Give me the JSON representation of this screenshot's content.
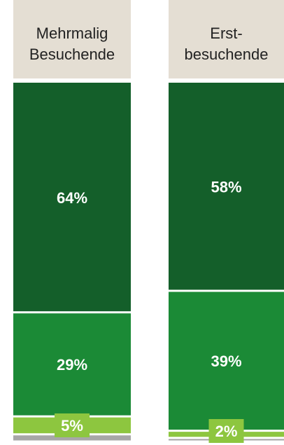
{
  "chart_data": {
    "type": "bar",
    "stacked": true,
    "normalized": true,
    "categories": [
      "Mehrmalig Besuchende",
      "Erst-besuchende"
    ],
    "category_labels": [
      [
        "Mehrmalig",
        "Besuchende"
      ],
      [
        "Erst-",
        "besuchende"
      ]
    ],
    "series": [
      {
        "values": [
          64,
          58
        ],
        "labels": [
          "64%",
          "58%"
        ],
        "color": "#145F2A"
      },
      {
        "values": [
          29,
          39
        ],
        "labels": [
          "29%",
          "39%"
        ],
        "color": "#1B8A36"
      },
      {
        "values": [
          5,
          2
        ],
        "labels": [
          "5%",
          "2%"
        ],
        "color": "#8DC63F"
      },
      {
        "values": [
          2,
          1
        ],
        "labels": [
          "",
          ""
        ],
        "color": "#A7A7A7"
      }
    ],
    "unit": "%",
    "grid": false,
    "legend": "none",
    "colors": {
      "header_bg": "#E4DED3",
      "label_text": "#ffffff",
      "category_text": "#222222"
    }
  }
}
